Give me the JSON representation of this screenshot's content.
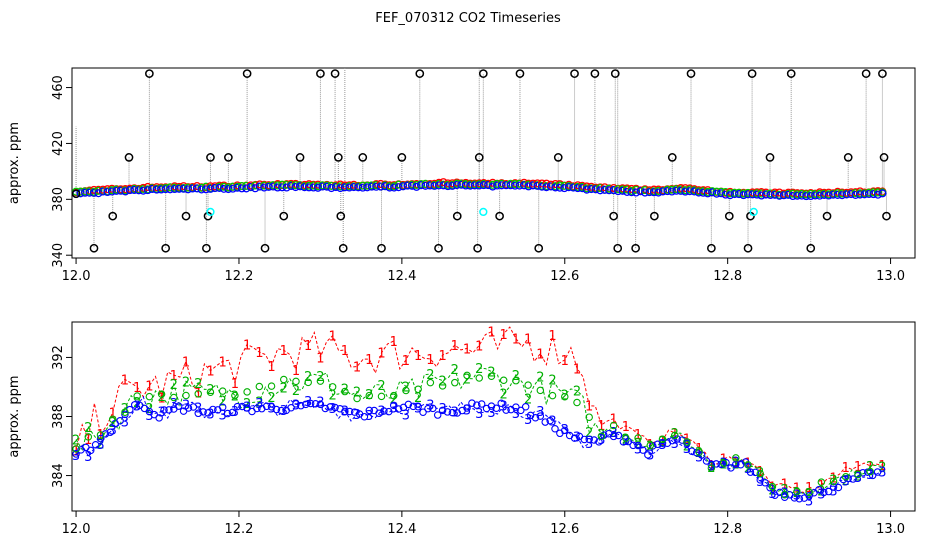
{
  "figure": {
    "title": "FEF_070312  CO2 Timeseries"
  },
  "chart_data": [
    {
      "type": "scatter",
      "panel": "top",
      "title": "",
      "xlabel": "",
      "ylabel": "approx. ppm",
      "xlim": [
        11.995,
        13.03
      ],
      "ylim": [
        338,
        474
      ],
      "x_ticks": [
        12.0,
        12.2,
        12.4,
        12.6,
        12.8,
        13.0
      ],
      "x_tick_labels": [
        "12.0",
        "12.2",
        "12.4",
        "12.6",
        "12.8",
        "13.0"
      ],
      "y_ticks": [
        340,
        380,
        420,
        460
      ],
      "y_tick_labels": [
        "340",
        "380",
        "420",
        "460"
      ],
      "grid": false,
      "legend": "none",
      "colors": {
        "series1": "#ff0000",
        "series2": "#00cc00",
        "series3": "#0000ff",
        "flagged": "#000000",
        "highlight": "#00ffff",
        "spikes": "#999999"
      },
      "series_main_knots": {
        "x": [
          12.0,
          12.05,
          12.1,
          12.17,
          12.2,
          12.25,
          12.3,
          12.33,
          12.4,
          12.45,
          12.5,
          12.55,
          12.6,
          12.66,
          12.7,
          12.75,
          12.8,
          12.83,
          12.9,
          12.95,
          12.99
        ],
        "y": [
          384.5,
          386,
          387.5,
          388,
          388.5,
          389.5,
          389,
          388.8,
          389.5,
          390.5,
          390,
          390.2,
          389,
          386.5,
          385.5,
          386.5,
          384,
          383.5,
          383,
          384,
          384.2
        ]
      },
      "flagged_points": {
        "x": [
          12.0,
          12.022,
          12.045,
          12.065,
          12.09,
          12.11,
          12.135,
          12.16,
          12.162,
          12.165,
          12.187,
          12.21,
          12.232,
          12.255,
          12.275,
          12.3,
          12.318,
          12.322,
          12.325,
          12.328,
          12.352,
          12.375,
          12.4,
          12.422,
          12.445,
          12.468,
          12.493,
          12.495,
          12.5,
          12.52,
          12.545,
          12.568,
          12.592,
          12.612,
          12.637,
          12.66,
          12.662,
          12.665,
          12.687,
          12.71,
          12.732,
          12.755,
          12.78,
          12.802,
          12.825,
          12.828,
          12.83,
          12.852,
          12.878,
          12.902,
          12.922,
          12.948,
          12.97,
          12.99,
          12.992,
          12.995
        ],
        "y": [
          384,
          345,
          368,
          410,
          470,
          345,
          368,
          345,
          368,
          410,
          410,
          470,
          345,
          368,
          410,
          470,
          470,
          410,
          368,
          345,
          410,
          345,
          410,
          470,
          345,
          368,
          345,
          410,
          470,
          368,
          470,
          345,
          410,
          470,
          470,
          368,
          470,
          345,
          345,
          368,
          410,
          470,
          345,
          368,
          345,
          368,
          470,
          410,
          470,
          345,
          368,
          410,
          470,
          470,
          410,
          368
        ]
      },
      "highlight_points": {
        "x": [
          12.165,
          12.5,
          12.832
        ],
        "y": [
          371,
          371,
          371
        ]
      }
    },
    {
      "type": "scatter",
      "panel": "bottom",
      "title": "",
      "xlabel": "",
      "ylabel": "approx. ppm",
      "xlim": [
        11.995,
        13.03
      ],
      "ylim": [
        381.6,
        394.4
      ],
      "x_ticks": [
        12.0,
        12.2,
        12.4,
        12.6,
        12.8,
        13.0
      ],
      "x_tick_labels": [
        "12.0",
        "12.2",
        "12.4",
        "12.6",
        "12.8",
        "13.0"
      ],
      "y_ticks": [
        384,
        388,
        392
      ],
      "y_tick_labels": [
        "384",
        "388",
        "392"
      ],
      "grid": false,
      "legend": "none",
      "series": [
        {
          "marker": "1",
          "color": "#ff0000",
          "x": [
            12.0,
            12.02,
            12.04,
            12.06,
            12.08,
            12.1,
            12.13,
            12.16,
            12.2,
            12.25,
            12.3,
            12.35,
            12.4,
            12.45,
            12.5,
            12.55,
            12.6,
            12.62,
            12.64,
            12.66,
            12.7,
            12.74,
            12.78,
            12.82,
            12.86,
            12.9,
            12.94,
            12.98,
            12.99
          ],
          "y": [
            385.5,
            387.5,
            388.5,
            389.5,
            390,
            390,
            390.5,
            391,
            391.5,
            392.3,
            392.5,
            392,
            392.3,
            392.5,
            392.5,
            393,
            392.5,
            391.8,
            387.5,
            387.7,
            386.3,
            387,
            385,
            385.2,
            383.2,
            383,
            384.2,
            385,
            384.9
          ]
        },
        {
          "marker": "2",
          "color": "#00b000",
          "x": [
            12.0,
            12.02,
            12.04,
            12.06,
            12.08,
            12.1,
            12.13,
            12.16,
            12.2,
            12.25,
            12.3,
            12.35,
            12.4,
            12.45,
            12.5,
            12.55,
            12.6,
            12.62,
            12.64,
            12.66,
            12.7,
            12.74,
            12.78,
            12.82,
            12.86,
            12.9,
            12.94,
            12.98,
            12.99
          ],
          "y": [
            385.8,
            386.5,
            387.3,
            388.5,
            389.3,
            389.5,
            389.6,
            389.5,
            389.5,
            390.2,
            390.4,
            389.4,
            389.5,
            390.3,
            390.8,
            390.2,
            389.4,
            388.8,
            386.8,
            387.2,
            386,
            386.8,
            384.8,
            385,
            383,
            382.9,
            383.9,
            384.6,
            384.5
          ]
        },
        {
          "marker": "3",
          "color": "#0000ff",
          "x": [
            12.0,
            12.02,
            12.04,
            12.06,
            12.08,
            12.1,
            12.13,
            12.16,
            12.2,
            12.25,
            12.3,
            12.35,
            12.4,
            12.45,
            12.5,
            12.55,
            12.6,
            12.62,
            12.64,
            12.66,
            12.7,
            12.74,
            12.78,
            12.82,
            12.86,
            12.9,
            12.94,
            12.98,
            12.99
          ],
          "y": [
            385.3,
            386,
            387,
            388.2,
            388.9,
            388.1,
            388.6,
            388.3,
            388.5,
            388.6,
            388.7,
            388.1,
            388.7,
            388.3,
            388.8,
            388.5,
            386.9,
            386.4,
            386.3,
            386.9,
            385.6,
            386.5,
            384.6,
            384.8,
            382.8,
            382.6,
            383.5,
            384.2,
            384
          ]
        }
      ]
    }
  ]
}
